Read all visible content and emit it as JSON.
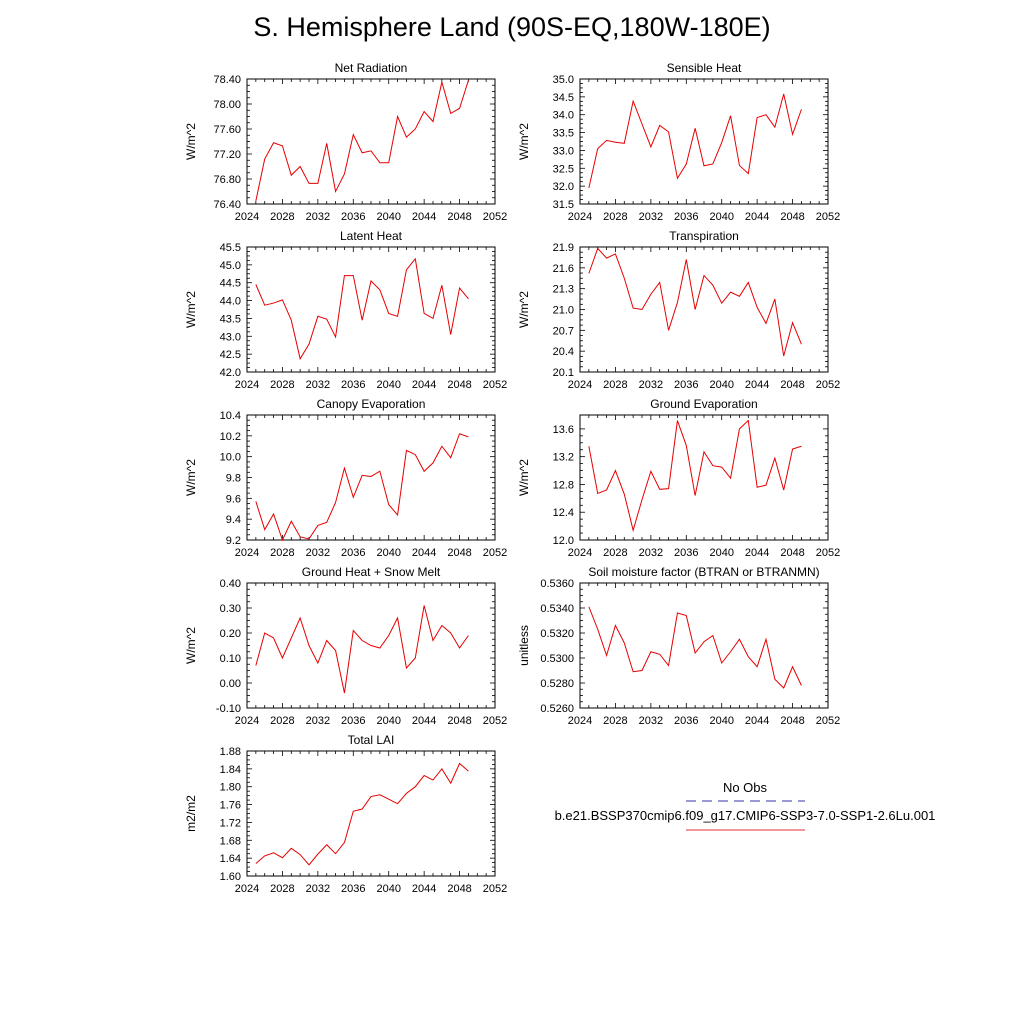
{
  "title": "S. Hemisphere Land (90S-EQ,180W-180E)",
  "legend": {
    "items": [
      {
        "label": "No Obs",
        "color": "#3333aa",
        "dash": true
      },
      {
        "label": "b.e21.BSSP370cmip6.f09_g17.CMIP6-SSP3-7.0-SSP1-2.6Lu.001",
        "color": "#e03030",
        "dash": false
      }
    ]
  },
  "colors": {
    "series": "#e60000",
    "frame": "#000000",
    "obs": "#3333aa"
  },
  "chart_data": [
    {
      "type": "line",
      "title": "Net Radiation",
      "ylabel": "W/m^2",
      "xlim": [
        2024,
        2052
      ],
      "ylim": [
        76.4,
        78.4
      ],
      "xticks": [
        "2024",
        "2028",
        "2032",
        "2036",
        "2040",
        "2044",
        "2048",
        "2052"
      ],
      "yticks": [
        "76.40",
        "76.80",
        "77.20",
        "77.60",
        "78.00",
        "78.40"
      ],
      "x": [
        2025,
        2026,
        2027,
        2028,
        2029,
        2030,
        2031,
        2032,
        2033,
        2034,
        2035,
        2036,
        2037,
        2038,
        2039,
        2040,
        2041,
        2042,
        2043,
        2044,
        2045,
        2046,
        2047,
        2048,
        2049
      ],
      "series": [
        {
          "values": [
            76.45,
            77.12,
            77.38,
            77.33,
            76.86,
            77.0,
            76.73,
            76.73,
            77.37,
            76.6,
            76.88,
            77.51,
            77.22,
            77.25,
            77.06,
            77.06,
            77.8,
            77.47,
            77.6,
            77.88,
            77.72,
            78.35,
            77.85,
            77.93,
            78.38
          ]
        }
      ]
    },
    {
      "type": "line",
      "title": "Sensible Heat",
      "ylabel": "W/m^2",
      "xlim": [
        2024,
        2052
      ],
      "ylim": [
        31.5,
        35.0
      ],
      "xticks": [
        "2024",
        "2028",
        "2032",
        "2036",
        "2040",
        "2044",
        "2048",
        "2052"
      ],
      "yticks": [
        "31.5",
        "32.0",
        "32.5",
        "33.0",
        "33.5",
        "34.0",
        "34.5",
        "35.0"
      ],
      "x": [
        2025,
        2026,
        2027,
        2028,
        2029,
        2030,
        2031,
        2032,
        2033,
        2034,
        2035,
        2036,
        2037,
        2038,
        2039,
        2040,
        2041,
        2042,
        2043,
        2044,
        2045,
        2046,
        2047,
        2048,
        2049
      ],
      "series": [
        {
          "values": [
            31.95,
            33.05,
            33.28,
            33.23,
            33.2,
            34.38,
            33.74,
            33.1,
            33.7,
            33.52,
            32.22,
            32.62,
            33.62,
            32.57,
            32.62,
            33.22,
            33.97,
            32.58,
            32.35,
            33.92,
            34.0,
            33.65,
            34.58,
            33.45,
            34.15
          ]
        }
      ]
    },
    {
      "type": "line",
      "title": "Latent Heat",
      "ylabel": "W/m^2",
      "xlim": [
        2024,
        2052
      ],
      "ylim": [
        42.0,
        45.5
      ],
      "xticks": [
        "2024",
        "2028",
        "2032",
        "2036",
        "2040",
        "2044",
        "2048",
        "2052"
      ],
      "yticks": [
        "42.0",
        "42.5",
        "43.0",
        "43.5",
        "44.0",
        "44.5",
        "45.0",
        "45.5"
      ],
      "x": [
        2025,
        2026,
        2027,
        2028,
        2029,
        2030,
        2031,
        2032,
        2033,
        2034,
        2035,
        2036,
        2037,
        2038,
        2039,
        2040,
        2041,
        2042,
        2043,
        2044,
        2045,
        2046,
        2047,
        2048,
        2049
      ],
      "series": [
        {
          "values": [
            44.45,
            43.87,
            43.93,
            44.02,
            43.45,
            42.37,
            42.78,
            43.56,
            43.48,
            42.98,
            44.7,
            44.7,
            43.45,
            44.55,
            44.3,
            43.64,
            43.56,
            44.86,
            45.17,
            43.64,
            43.5,
            44.43,
            43.05,
            44.35,
            44.05
          ]
        }
      ]
    },
    {
      "type": "line",
      "title": "Transpiration",
      "ylabel": "W/m^2",
      "xlim": [
        2024,
        2052
      ],
      "ylim": [
        20.1,
        21.9
      ],
      "xticks": [
        "2024",
        "2028",
        "2032",
        "2036",
        "2040",
        "2044",
        "2048",
        "2052"
      ],
      "yticks": [
        "20.1",
        "20.4",
        "20.7",
        "21.0",
        "21.3",
        "21.6",
        "21.9"
      ],
      "x": [
        2025,
        2026,
        2027,
        2028,
        2029,
        2030,
        2031,
        2032,
        2033,
        2034,
        2035,
        2036,
        2037,
        2038,
        2039,
        2040,
        2041,
        2042,
        2043,
        2044,
        2045,
        2046,
        2047,
        2048,
        2049
      ],
      "series": [
        {
          "values": [
            21.52,
            21.88,
            21.74,
            21.8,
            21.45,
            21.02,
            21.0,
            21.22,
            21.39,
            20.7,
            21.1,
            21.72,
            21.0,
            21.49,
            21.35,
            21.09,
            21.25,
            21.19,
            21.39,
            21.03,
            20.8,
            21.15,
            20.33,
            20.81,
            20.5
          ]
        }
      ]
    },
    {
      "type": "line",
      "title": "Canopy Evaporation",
      "ylabel": "W/m^2",
      "xlim": [
        2024,
        2052
      ],
      "ylim": [
        9.2,
        10.4
      ],
      "xticks": [
        "2024",
        "2028",
        "2032",
        "2036",
        "2040",
        "2044",
        "2048",
        "2052"
      ],
      "yticks": [
        "9.2",
        "9.4",
        "9.6",
        "9.8",
        "10.0",
        "10.2",
        "10.4"
      ],
      "x": [
        2025,
        2026,
        2027,
        2028,
        2029,
        2030,
        2031,
        2032,
        2033,
        2034,
        2035,
        2036,
        2037,
        2038,
        2039,
        2040,
        2041,
        2042,
        2043,
        2044,
        2045,
        2046,
        2047,
        2048,
        2049
      ],
      "series": [
        {
          "values": [
            9.57,
            9.3,
            9.45,
            9.2,
            9.38,
            9.23,
            9.21,
            9.34,
            9.37,
            9.56,
            9.89,
            9.61,
            9.82,
            9.81,
            9.86,
            9.54,
            9.44,
            10.06,
            10.02,
            9.86,
            9.94,
            10.1,
            9.99,
            10.22,
            10.19
          ]
        }
      ]
    },
    {
      "type": "line",
      "title": "Ground Evaporation",
      "ylabel": "W/m^2",
      "xlim": [
        2024,
        2052
      ],
      "ylim": [
        12.0,
        13.8
      ],
      "xticks": [
        "2024",
        "2028",
        "2032",
        "2036",
        "2040",
        "2044",
        "2048",
        "2052"
      ],
      "yticks": [
        "12.0",
        "12.4",
        "12.8",
        "13.2",
        "13.6"
      ],
      "x": [
        2025,
        2026,
        2027,
        2028,
        2029,
        2030,
        2031,
        2032,
        2033,
        2034,
        2035,
        2036,
        2037,
        2038,
        2039,
        2040,
        2041,
        2042,
        2043,
        2044,
        2045,
        2046,
        2047,
        2048,
        2049
      ],
      "series": [
        {
          "values": [
            13.35,
            12.67,
            12.72,
            13.0,
            12.66,
            12.14,
            12.58,
            12.99,
            12.73,
            12.74,
            13.72,
            13.36,
            12.64,
            13.27,
            13.07,
            13.05,
            12.89,
            13.6,
            13.72,
            12.76,
            12.79,
            13.18,
            12.72,
            13.31,
            13.35
          ]
        }
      ]
    },
    {
      "type": "line",
      "title": "Ground Heat + Snow Melt",
      "ylabel": "W/m^2",
      "xlim": [
        2024,
        2052
      ],
      "ylim": [
        -0.1,
        0.4
      ],
      "xticks": [
        "2024",
        "2028",
        "2032",
        "2036",
        "2040",
        "2044",
        "2048",
        "2052"
      ],
      "yticks": [
        "-0.10",
        "0.00",
        "0.10",
        "0.20",
        "0.30",
        "0.40"
      ],
      "x": [
        2025,
        2026,
        2027,
        2028,
        2029,
        2030,
        2031,
        2032,
        2033,
        2034,
        2035,
        2036,
        2037,
        2038,
        2039,
        2040,
        2041,
        2042,
        2043,
        2044,
        2045,
        2046,
        2047,
        2048,
        2049
      ],
      "series": [
        {
          "values": [
            0.07,
            0.2,
            0.18,
            0.1,
            0.18,
            0.26,
            0.15,
            0.08,
            0.17,
            0.13,
            -0.04,
            0.21,
            0.17,
            0.15,
            0.14,
            0.19,
            0.26,
            0.06,
            0.1,
            0.31,
            0.17,
            0.23,
            0.2,
            0.14,
            0.19
          ]
        }
      ]
    },
    {
      "type": "line",
      "title": "Soil moisture factor (BTRAN or BTRANMN)",
      "ylabel": "unitless",
      "xlim": [
        2024,
        2052
      ],
      "ylim": [
        0.526,
        0.536
      ],
      "xticks": [
        "2024",
        "2028",
        "2032",
        "2036",
        "2040",
        "2044",
        "2048",
        "2052"
      ],
      "yticks": [
        "0.5260",
        "0.5280",
        "0.5300",
        "0.5320",
        "0.5340",
        "0.5360"
      ],
      "x": [
        2025,
        2026,
        2027,
        2028,
        2029,
        2030,
        2031,
        2032,
        2033,
        2034,
        2035,
        2036,
        2037,
        2038,
        2039,
        2040,
        2041,
        2042,
        2043,
        2044,
        2045,
        2046,
        2047,
        2048,
        2049
      ],
      "series": [
        {
          "values": [
            0.5341,
            0.5323,
            0.5302,
            0.5326,
            0.5312,
            0.5289,
            0.529,
            0.5305,
            0.5303,
            0.5294,
            0.5336,
            0.5334,
            0.5304,
            0.5313,
            0.5318,
            0.5296,
            0.5305,
            0.5315,
            0.5301,
            0.5293,
            0.5315,
            0.5283,
            0.5276,
            0.5293,
            0.5278
          ]
        }
      ]
    },
    {
      "type": "line",
      "title": "Total LAI",
      "ylabel": "m2/m2",
      "xlim": [
        2024,
        2052
      ],
      "ylim": [
        1.6,
        1.88
      ],
      "xticks": [
        "2024",
        "2028",
        "2032",
        "2036",
        "2040",
        "2044",
        "2048",
        "2052"
      ],
      "yticks": [
        "1.60",
        "1.64",
        "1.68",
        "1.72",
        "1.76",
        "1.80",
        "1.84",
        "1.88"
      ],
      "x": [
        2025,
        2026,
        2027,
        2028,
        2029,
        2030,
        2031,
        2032,
        2033,
        2034,
        2035,
        2036,
        2037,
        2038,
        2039,
        2040,
        2041,
        2042,
        2043,
        2044,
        2045,
        2046,
        2047,
        2048,
        2049
      ],
      "series": [
        {
          "values": [
            1.628,
            1.645,
            1.652,
            1.641,
            1.662,
            1.648,
            1.625,
            1.649,
            1.67,
            1.65,
            1.675,
            1.745,
            1.75,
            1.778,
            1.782,
            1.772,
            1.762,
            1.785,
            1.8,
            1.825,
            1.815,
            1.84,
            1.808,
            1.852,
            1.835
          ]
        }
      ]
    }
  ]
}
